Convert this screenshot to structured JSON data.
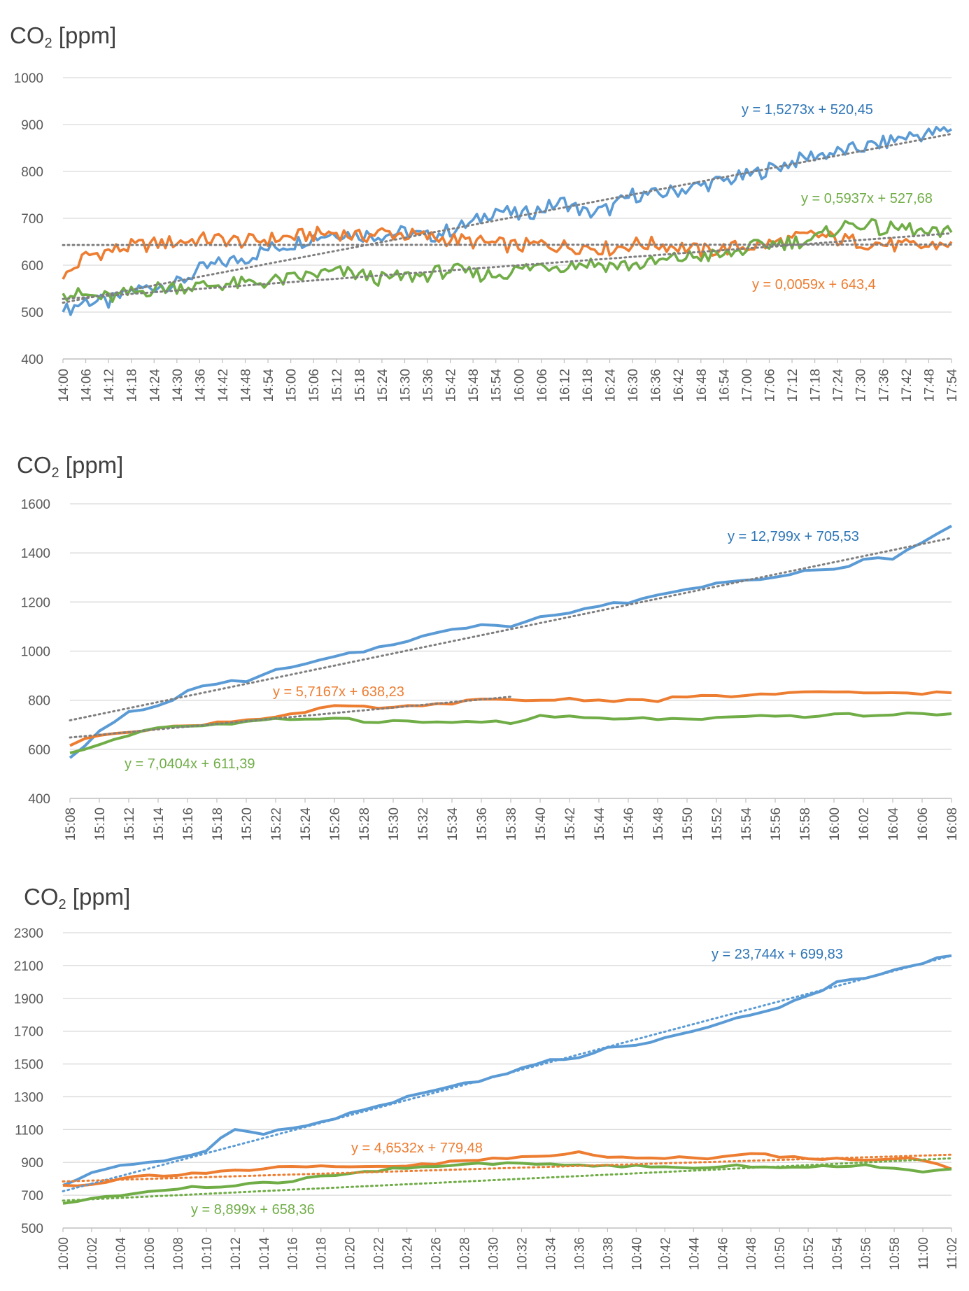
{
  "chart_data": [
    {
      "type": "line",
      "title": "",
      "ylabel_main": "CO",
      "ylabel_sub": "2",
      "ylabel_unit": " [ppm]",
      "ylim": [
        400,
        1000
      ],
      "yticks": [
        400,
        500,
        600,
        700,
        800,
        900,
        1000
      ],
      "xlabel": "",
      "categories": [
        "14:00",
        "14:06",
        "14:12",
        "14:18",
        "14:24",
        "14:30",
        "14:36",
        "14:42",
        "14:48",
        "14:54",
        "15:00",
        "15:06",
        "15:12",
        "15:18",
        "15:24",
        "15:30",
        "15:36",
        "15:42",
        "15:48",
        "15:54",
        "16:00",
        "16:06",
        "16:12",
        "16:18",
        "16:24",
        "16:30",
        "16:36",
        "16:42",
        "16:48",
        "16:54",
        "17:00",
        "17:06",
        "17:12",
        "17:18",
        "17:24",
        "17:30",
        "17:36",
        "17:42",
        "17:48",
        "17:54"
      ],
      "grid": true,
      "series": [
        {
          "name": "blue",
          "color": "#5b9bd5",
          "values": [
            500,
            525,
            520,
            545,
            555,
            560,
            590,
            605,
            615,
            635,
            645,
            660,
            670,
            665,
            665,
            670,
            660,
            675,
            690,
            720,
            705,
            720,
            735,
            710,
            720,
            750,
            750,
            760,
            770,
            780,
            790,
            805,
            820,
            835,
            840,
            850,
            860,
            875,
            880,
            890
          ]
        },
        {
          "name": "orange",
          "color": "#ed7d31",
          "values": [
            570,
            620,
            630,
            640,
            645,
            650,
            655,
            655,
            650,
            655,
            660,
            665,
            670,
            660,
            670,
            665,
            660,
            655,
            650,
            645,
            640,
            645,
            640,
            640,
            635,
            645,
            645,
            640,
            630,
            635,
            640,
            645,
            655,
            665,
            655,
            650,
            645,
            640,
            640,
            650
          ]
        },
        {
          "name": "green",
          "color": "#70ad47",
          "values": [
            540,
            535,
            530,
            540,
            550,
            555,
            555,
            560,
            560,
            565,
            570,
            580,
            585,
            580,
            570,
            575,
            580,
            590,
            580,
            580,
            590,
            600,
            600,
            605,
            600,
            600,
            605,
            615,
            620,
            620,
            635,
            645,
            650,
            655,
            680,
            690,
            675,
            680,
            665,
            670
          ]
        }
      ],
      "trendlines": [
        {
          "series": "blue",
          "start": 520,
          "end": 880
        },
        {
          "series": "orange",
          "start": 643,
          "end": 644
        },
        {
          "series": "green",
          "start": 528,
          "end": 668
        }
      ],
      "annotations": [
        {
          "text": "y = 1,5273x + 520,45",
          "color": "#2e75b6"
        },
        {
          "text": "y = 0,5937x + 527,68",
          "color": "#70ad47"
        },
        {
          "text": "y = 0,0059x + 643,4",
          "color": "#ed7d31"
        }
      ]
    },
    {
      "type": "line",
      "title": "",
      "ylabel_main": "CO",
      "ylabel_sub": "2",
      "ylabel_unit": " [ppm]",
      "ylim": [
        400,
        1600
      ],
      "yticks": [
        400,
        600,
        800,
        1000,
        1200,
        1400,
        1600
      ],
      "xlabel": "",
      "categories": [
        "15:08",
        "15:10",
        "15:12",
        "15:14",
        "15:16",
        "15:18",
        "15:20",
        "15:22",
        "15:24",
        "15:26",
        "15:28",
        "15:30",
        "15:32",
        "15:34",
        "15:36",
        "15:38",
        "15:40",
        "15:42",
        "15:44",
        "15:46",
        "15:48",
        "15:50",
        "15:52",
        "15:54",
        "15:56",
        "15:58",
        "16:00",
        "16:02",
        "16:04",
        "16:06",
        "16:08"
      ],
      "grid": true,
      "series": [
        {
          "name": "blue",
          "color": "#5b9bd5",
          "values": [
            565,
            670,
            750,
            775,
            835,
            870,
            880,
            920,
            945,
            975,
            1000,
            1030,
            1060,
            1085,
            1110,
            1105,
            1140,
            1155,
            1185,
            1200,
            1230,
            1250,
            1280,
            1295,
            1300,
            1325,
            1330,
            1370,
            1380,
            1440,
            1510
          ]
        },
        {
          "name": "orange",
          "color": "#ed7d31",
          "values": [
            615,
            660,
            675,
            685,
            695,
            710,
            720,
            735,
            750,
            775,
            770,
            770,
            775,
            790,
            800,
            800,
            800,
            805,
            800,
            800,
            800,
            815,
            815,
            820,
            825,
            830,
            830,
            830,
            830,
            830,
            830
          ]
        },
        {
          "name": "green",
          "color": "#70ad47",
          "values": [
            585,
            620,
            660,
            690,
            695,
            700,
            710,
            720,
            725,
            730,
            715,
            715,
            710,
            710,
            715,
            705,
            735,
            730,
            725,
            725,
            725,
            720,
            725,
            730,
            735,
            735,
            740,
            740,
            740,
            745,
            745
          ]
        }
      ],
      "trendlines": [
        {
          "series": "blue",
          "start": 718,
          "end": 1461
        },
        {
          "series": "orange",
          "start": 648,
          "end": 814
        }
      ],
      "annotations": [
        {
          "text": "y = 12,799x + 705,53",
          "color": "#2e75b6"
        },
        {
          "text": "y = 5,7167x + 638,23",
          "color": "#ed7d31"
        },
        {
          "text": "y = 7,0404x + 611,39",
          "color": "#70ad47"
        }
      ]
    },
    {
      "type": "line",
      "title": "",
      "ylabel_main": "CO",
      "ylabel_sub": "2",
      "ylabel_unit": " [ppm]",
      "ylim": [
        500,
        2300
      ],
      "yticks": [
        500,
        700,
        900,
        1100,
        1300,
        1500,
        1700,
        1900,
        2100,
        2300
      ],
      "xlabel": "",
      "categories": [
        "10:00",
        "10:02",
        "10:04",
        "10:06",
        "10:08",
        "10:10",
        "10:12",
        "10:14",
        "10:16",
        "10:18",
        "10:20",
        "10:22",
        "10:24",
        "10:26",
        "10:28",
        "10:30",
        "10:32",
        "10:34",
        "10:36",
        "10:38",
        "10:40",
        "10:42",
        "10:44",
        "10:46",
        "10:48",
        "10:50",
        "10:52",
        "10:54",
        "10:56",
        "10:58",
        "11:00",
        "11:02"
      ],
      "grid": true,
      "series": [
        {
          "name": "blue",
          "color": "#5b9bd5",
          "values": [
            760,
            830,
            880,
            900,
            930,
            970,
            1110,
            1080,
            1110,
            1150,
            1200,
            1240,
            1300,
            1340,
            1380,
            1420,
            1480,
            1520,
            1530,
            1600,
            1620,
            1660,
            1710,
            1750,
            1800,
            1850,
            1910,
            2000,
            2030,
            2080,
            2120,
            2160
          ]
        },
        {
          "name": "orange",
          "color": "#ed7d31",
          "values": [
            760,
            770,
            800,
            820,
            830,
            840,
            850,
            860,
            870,
            870,
            870,
            875,
            880,
            890,
            910,
            920,
            930,
            940,
            960,
            940,
            930,
            930,
            920,
            930,
            960,
            940,
            920,
            930,
            920,
            930,
            910,
            860
          ]
        },
        {
          "name": "green",
          "color": "#70ad47",
          "values": [
            650,
            680,
            700,
            720,
            740,
            750,
            760,
            770,
            790,
            810,
            830,
            850,
            870,
            880,
            890,
            890,
            890,
            890,
            880,
            880,
            880,
            870,
            870,
            880,
            880,
            870,
            870,
            880,
            880,
            870,
            850,
            860
          ]
        }
      ],
      "trendlines": [
        {
          "series": "blue",
          "start": 724,
          "end": 2160
        },
        {
          "series": "orange",
          "start": 784,
          "end": 947
        },
        {
          "series": "green",
          "start": 667,
          "end": 925
        }
      ],
      "annotations": [
        {
          "text": "y = 23,744x + 699,83",
          "color": "#2e75b6"
        },
        {
          "text": "y = 4,6532x + 779,48",
          "color": "#ed7d31"
        },
        {
          "text": "y = 8,899x + 658,36",
          "color": "#70ad47"
        }
      ]
    }
  ]
}
